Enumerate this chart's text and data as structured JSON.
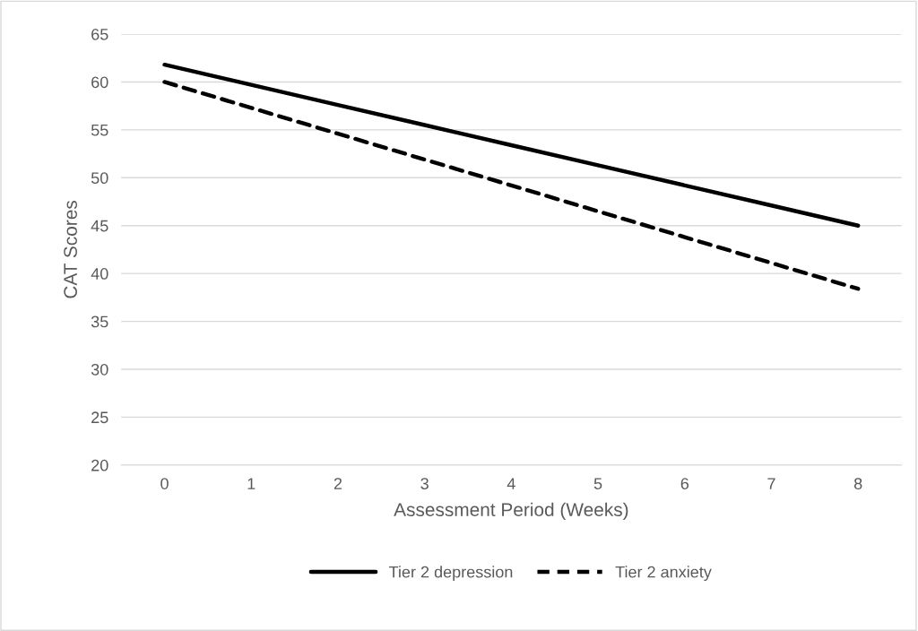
{
  "chart_data": {
    "type": "line",
    "xlabel": "Assessment Period (Weeks)",
    "ylabel": "CAT Scores",
    "categories": [
      "0",
      "1",
      "2",
      "3",
      "4",
      "5",
      "6",
      "7",
      "8"
    ],
    "series": [
      {
        "name": "Tier 2 depression",
        "color": "#000000",
        "line_style": "solid",
        "values": [
          61.8,
          59.7,
          57.6,
          55.5,
          53.4,
          51.3,
          49.2,
          47.1,
          45.0
        ]
      },
      {
        "name": "Tier 2 anxiety",
        "color": "#000000",
        "line_style": "dashed",
        "values": [
          60.0,
          57.3,
          54.6,
          51.9,
          49.2,
          46.5,
          43.8,
          41.1,
          38.4
        ]
      }
    ],
    "ylim": [
      20,
      65
    ],
    "yticks": [
      20,
      25,
      30,
      35,
      40,
      45,
      50,
      55,
      60,
      65
    ],
    "grid": "y",
    "legend": "bottom",
    "marker": "none"
  }
}
